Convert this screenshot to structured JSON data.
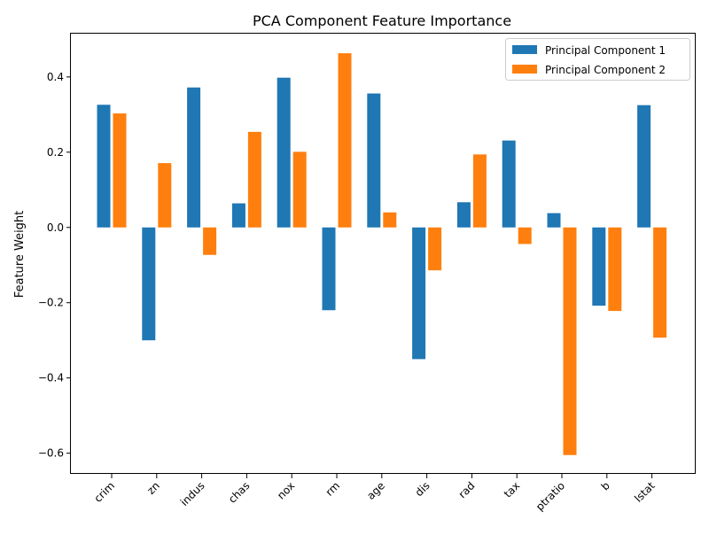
{
  "chart_data": {
    "type": "bar",
    "title": "PCA Component Feature Importance",
    "xlabel": "",
    "ylabel": "Feature Weight",
    "ylim": [
      -0.655,
      0.515
    ],
    "yticks": [
      -0.6,
      -0.4,
      -0.2,
      0.0,
      0.2,
      0.4
    ],
    "ytick_labels": [
      "−0.6",
      "−0.4",
      "−0.2",
      "0.0",
      "0.2",
      "0.4"
    ],
    "categories": [
      "crim",
      "zn",
      "indus",
      "chas",
      "nox",
      "rm",
      "age",
      "dis",
      "rad",
      "tax",
      "ptratio",
      "b",
      "lstat"
    ],
    "series": [
      {
        "name": "Principal Component 1",
        "color": "#1f77b4",
        "values": [
          0.326,
          -0.3,
          0.372,
          0.064,
          0.398,
          -0.22,
          0.356,
          -0.35,
          0.067,
          0.231,
          0.038,
          -0.208,
          0.325
        ]
      },
      {
        "name": "Principal Component 2",
        "color": "#ff7f0e",
        "values": [
          0.303,
          0.171,
          -0.073,
          0.254,
          0.201,
          0.463,
          0.04,
          -0.114,
          0.194,
          -0.044,
          -0.605,
          -0.222,
          -0.293
        ]
      }
    ],
    "grid": false,
    "legend_position": "top-right"
  }
}
